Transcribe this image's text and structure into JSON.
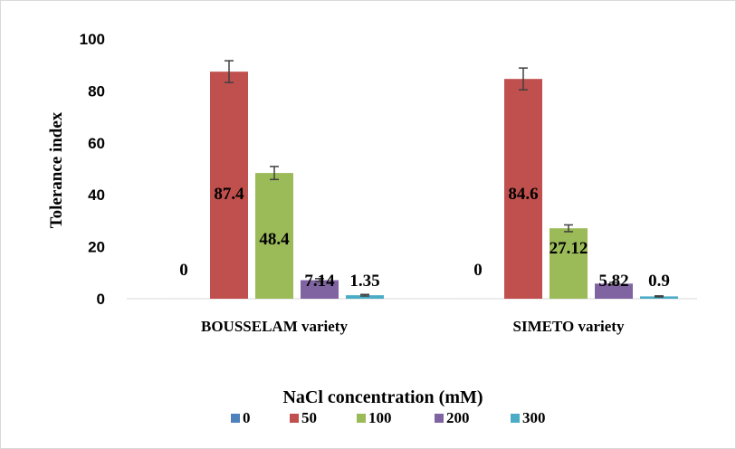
{
  "chart_data": {
    "type": "bar",
    "categories": [
      "BOUSSELAM variety",
      "SIMETO variety"
    ],
    "series": [
      {
        "name": "0",
        "color": "#4f81bd",
        "values": [
          0,
          0
        ],
        "errors": [
          0,
          0
        ],
        "labels": [
          "0",
          "0"
        ]
      },
      {
        "name": "50",
        "color": "#c0504d",
        "values": [
          87.4,
          84.6
        ],
        "errors": [
          4.2,
          4.2
        ],
        "labels": [
          "87.4",
          "84.6"
        ]
      },
      {
        "name": "100",
        "color": "#9bbb59",
        "values": [
          48.4,
          27.12
        ],
        "errors": [
          2.5,
          1.3
        ],
        "labels": [
          "48.4",
          "27.12"
        ]
      },
      {
        "name": "200",
        "color": "#8064a2",
        "values": [
          7.14,
          5.82
        ],
        "errors": [
          0.6,
          0.5
        ],
        "labels": [
          "7.14",
          "5.82"
        ]
      },
      {
        "name": "300",
        "color": "#4bacc6",
        "values": [
          1.35,
          0.9
        ],
        "errors": [
          0.3,
          0.2
        ],
        "labels": [
          "1.35",
          "0.9"
        ]
      }
    ],
    "xlabel": "NaCl concentration (mM)",
    "ylabel": "Tolerance index",
    "ylim": [
      0,
      100
    ],
    "yticks": [
      "0",
      "20",
      "40",
      "60",
      "80",
      "100"
    ],
    "grid": false,
    "legend": "bottom"
  }
}
